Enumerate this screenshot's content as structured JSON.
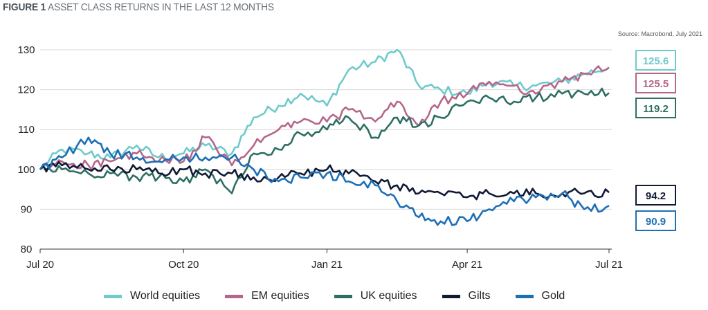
{
  "header": {
    "figure_label": "FIGURE 1",
    "title": "ASSET CLASS RETURNS IN THE LAST 12 MONTHS"
  },
  "source": "Source: Macrobond, July 2021",
  "colors": {
    "world_equities": "#6fcacc",
    "em_equities": "#b4678a",
    "uk_equities": "#2e6e63",
    "gilts": "#111a35",
    "gold": "#1d6fb6"
  },
  "chart_data": {
    "type": "line",
    "title": "ASSET CLASS RETURNS IN THE LAST 12 MONTHS",
    "xlabel": "",
    "ylabel": "",
    "x_ticks": [
      "Jul 20",
      "Oct 20",
      "Jan 21",
      "Apr 21",
      "Jul 21"
    ],
    "x_range": [
      "2020-07-01",
      "2021-07-01"
    ],
    "ylim": [
      80,
      130
    ],
    "y_ticks": [
      80,
      90,
      100,
      110,
      120,
      130
    ],
    "grid": "horizontal",
    "legend_position": "bottom",
    "x": [
      "2020-07-01",
      "2020-07-15",
      "2020-08-01",
      "2020-08-15",
      "2020-09-01",
      "2020-09-15",
      "2020-10-01",
      "2020-10-15",
      "2020-11-01",
      "2020-11-15",
      "2020-12-01",
      "2020-12-15",
      "2021-01-01",
      "2021-01-15",
      "2021-02-01",
      "2021-02-15",
      "2021-03-01",
      "2021-03-15",
      "2021-04-01",
      "2021-04-15",
      "2021-05-01",
      "2021-05-15",
      "2021-06-01",
      "2021-06-15",
      "2021-07-01"
    ],
    "series": [
      {
        "name": "World equities",
        "color": "#6fcacc",
        "end_label": "125.6",
        "values": [
          100,
          105,
          104,
          103,
          106,
          103,
          104,
          106,
          104,
          113,
          116,
          119,
          116,
          125,
          127,
          130,
          121,
          120,
          119,
          122,
          121,
          121,
          122,
          124,
          125.6
        ]
      },
      {
        "name": "EM equities",
        "color": "#b4678a",
        "end_label": "125.5",
        "values": [
          100,
          102,
          101,
          102,
          104,
          102,
          102,
          108,
          101,
          106,
          110,
          112,
          112,
          115,
          112,
          117,
          111,
          117,
          119,
          122,
          121,
          119,
          122,
          124,
          125.5
        ]
      },
      {
        "name": "UK equities",
        "color": "#2e6e63",
        "end_label": "119.2",
        "values": [
          100,
          100,
          99,
          99,
          98,
          98,
          97,
          100,
          94,
          104,
          105,
          109,
          110,
          113,
          108,
          113,
          111,
          113,
          117,
          118,
          117,
          118,
          119,
          119,
          119.2
        ]
      },
      {
        "name": "Gilts",
        "color": "#111a35",
        "end_label": "94.2",
        "values": [
          100,
          101,
          100,
          100,
          100,
          99,
          100,
          99,
          99,
          98,
          98,
          99,
          100,
          99,
          97,
          96,
          94,
          94,
          93,
          94,
          94,
          94,
          94,
          94,
          94.2
        ]
      },
      {
        "name": "Gold",
        "color": "#1d6fb6",
        "end_label": "90.9",
        "values": [
          100,
          103,
          108,
          104,
          103,
          102,
          103,
          103,
          103,
          100,
          97,
          98,
          99,
          97,
          96,
          92,
          88,
          87,
          87,
          90,
          92,
          93,
          94,
          90,
          90.9
        ]
      }
    ]
  }
}
